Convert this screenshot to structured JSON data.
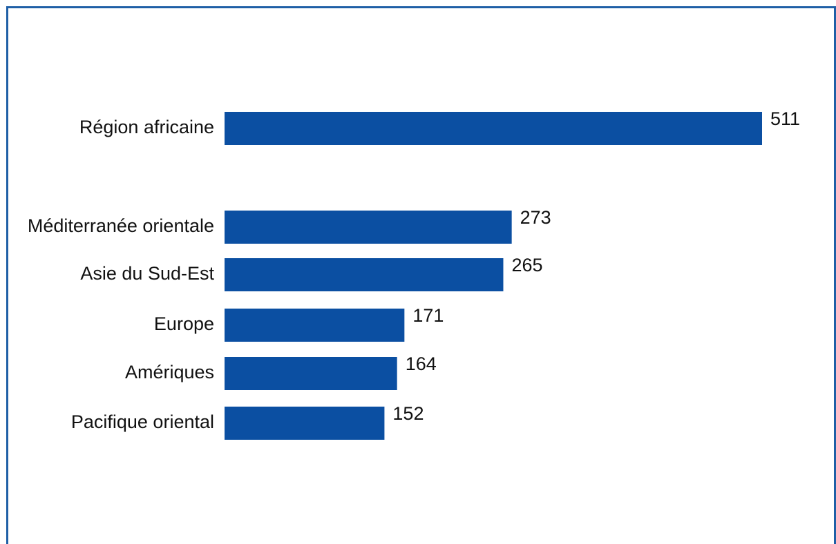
{
  "chart_data": {
    "type": "bar",
    "orientation": "horizontal",
    "categories": [
      "Région africaine",
      "Méditerranée orientale",
      "Asie du Sud-Est",
      "Europe",
      "Amériques",
      "Pacifique oriental"
    ],
    "values": [
      511,
      273,
      265,
      171,
      164,
      152
    ],
    "bar_color": "#0b4fa2",
    "border_color": "#1f5fa6",
    "grid": false,
    "legend": "none"
  }
}
